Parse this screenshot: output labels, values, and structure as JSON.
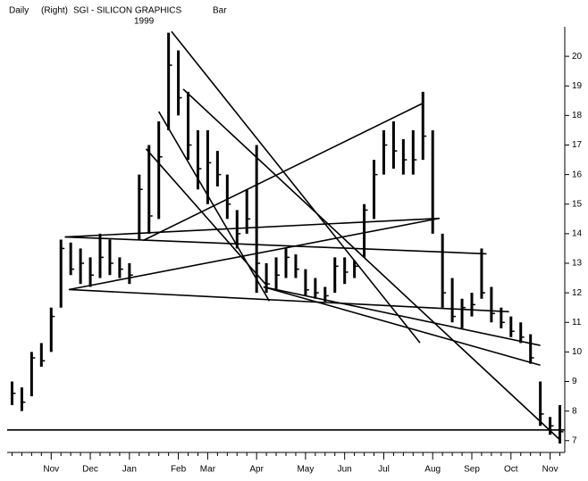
{
  "chart_data": {
    "type": "hlc",
    "header": {
      "period": "Daily",
      "axis_side": "(Right)",
      "title": "SGI - SILICON GRAPHICS",
      "year": "1999",
      "style": "Bar"
    },
    "categories": [
      null,
      null,
      null,
      null,
      "Nov",
      null,
      null,
      null,
      "Dec",
      null,
      null,
      null,
      "Jan",
      null,
      null,
      null,
      null,
      "Feb",
      null,
      null,
      "Mar",
      null,
      null,
      null,
      null,
      "Apr",
      null,
      null,
      null,
      null,
      "May",
      null,
      null,
      null,
      "Jun",
      null,
      null,
      null,
      "Jul",
      null,
      null,
      null,
      null,
      "Aug",
      null,
      null,
      null,
      "Sep",
      null,
      null,
      null,
      "Oct",
      null,
      null,
      null,
      "Nov",
      null
    ],
    "high": [
      9.0,
      8.8,
      10.0,
      10.3,
      11.5,
      13.8,
      13.7,
      13.5,
      13.2,
      14.0,
      13.8,
      13.2,
      13.0,
      16.0,
      17.0,
      17.8,
      20.8,
      20.2,
      18.8,
      17.5,
      17.5,
      16.8,
      16.0,
      14.8,
      15.5,
      17.0,
      13.0,
      13.2,
      13.5,
      13.3,
      12.8,
      12.5,
      12.2,
      13.2,
      13.2,
      13.1,
      15.0,
      16.5,
      17.5,
      17.8,
      17.2,
      17.5,
      18.8,
      17.5,
      14.0,
      12.5,
      11.8,
      12.0,
      13.5,
      12.2,
      11.5,
      11.2,
      11.0,
      10.6,
      9.0,
      7.8,
      8.2
    ],
    "low": [
      8.2,
      8.0,
      8.5,
      9.5,
      10.0,
      11.5,
      12.6,
      12.3,
      12.2,
      12.5,
      12.6,
      12.5,
      12.3,
      13.8,
      14.0,
      14.5,
      17.5,
      18.0,
      16.5,
      15.5,
      15.0,
      15.6,
      14.5,
      13.5,
      14.0,
      12.0,
      12.0,
      12.1,
      12.5,
      12.5,
      11.9,
      11.8,
      11.7,
      12.0,
      12.3,
      12.5,
      13.2,
      14.5,
      16.0,
      16.2,
      16.0,
      16.0,
      16.5,
      14.0,
      11.5,
      11.0,
      10.8,
      11.2,
      11.8,
      11.0,
      10.8,
      10.5,
      10.3,
      9.6,
      7.5,
      7.2,
      6.9
    ],
    "close": [
      8.6,
      8.3,
      9.8,
      9.7,
      11.2,
      13.5,
      12.8,
      13.0,
      12.6,
      13.2,
      13.0,
      12.8,
      12.6,
      15.5,
      14.6,
      16.6,
      19.7,
      18.6,
      17.0,
      16.2,
      16.4,
      16.0,
      15.0,
      14.0,
      14.5,
      13.0,
      12.3,
      12.6,
      13.2,
      12.8,
      12.1,
      12.0,
      11.9,
      12.9,
      12.7,
      12.9,
      14.8,
      16.0,
      17.0,
      16.8,
      16.5,
      16.5,
      17.3,
      14.5,
      12.0,
      11.2,
      11.5,
      11.6,
      12.0,
      11.3,
      11.0,
      10.7,
      10.5,
      9.8,
      7.9,
      7.5,
      7.3
    ],
    "trendlines": [
      {
        "x": [
          16.3,
          41.7
        ],
        "values": [
          20.84,
          10.31
        ]
      },
      {
        "x": [
          15.0,
          26.3
        ],
        "values": [
          18.13,
          11.72
        ]
      },
      {
        "x": [
          17.5,
          56.1
        ],
        "values": [
          18.89,
          7.0
        ]
      },
      {
        "x": [
          13.7,
          26.0
        ],
        "values": [
          16.87,
          12.26
        ]
      },
      {
        "x": [
          13.4,
          42.1
        ],
        "values": [
          13.77,
          18.43
        ]
      },
      {
        "x": [
          5.4,
          43.7
        ],
        "values": [
          13.89,
          14.52
        ]
      },
      {
        "x": [
          5.4,
          48.5
        ],
        "values": [
          13.89,
          13.32
        ]
      },
      {
        "x": [
          5.8,
          43.7
        ],
        "values": [
          12.11,
          14.52
        ]
      },
      {
        "x": [
          5.8,
          50.8
        ],
        "values": [
          12.11,
          11.36
        ]
      },
      {
        "x": [
          25.7,
          54.0
        ],
        "values": [
          12.2,
          10.22
        ]
      },
      {
        "x": [
          25.7,
          54.0
        ],
        "values": [
          12.2,
          9.55
        ]
      },
      {
        "x": [
          -0.5,
          56.5
        ],
        "values": [
          7.36,
          7.36
        ]
      }
    ],
    "color": "#000000",
    "ylim": [
      6.6,
      21
    ],
    "yticks": [
      7,
      8,
      9,
      10,
      11,
      12,
      13,
      14,
      15,
      16,
      17,
      18,
      19,
      20
    ]
  }
}
